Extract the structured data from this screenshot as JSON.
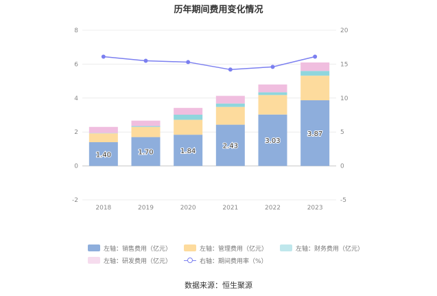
{
  "chart_data": {
    "type": "bar",
    "title": "历年期间费用变化情况",
    "categories": [
      "2018",
      "2019",
      "2020",
      "2021",
      "2022",
      "2023"
    ],
    "series": [
      {
        "name": "左轴：销售费用（亿元）",
        "axis": "left",
        "type": "bar",
        "color": "#8eaedc",
        "values": [
          1.4,
          1.7,
          1.84,
          2.43,
          3.03,
          3.87
        ],
        "labels": [
          "1.40",
          "1.70",
          "1.84",
          "2.43",
          "3.03",
          "3.87"
        ]
      },
      {
        "name": "左轴：管理费用（亿元）",
        "axis": "left",
        "type": "bar",
        "color": "#fddb9d",
        "values": [
          0.52,
          0.6,
          0.88,
          1.05,
          1.15,
          1.45
        ]
      },
      {
        "name": "左轴：财务费用（亿元）",
        "axis": "left",
        "type": "bar",
        "color": "#8fd6dd",
        "values": [
          0.02,
          0.05,
          0.3,
          0.2,
          0.16,
          0.28
        ]
      },
      {
        "name": "左轴：研发费用（亿元）",
        "axis": "left",
        "type": "bar",
        "color": "#f0bedf",
        "values": [
          0.36,
          0.32,
          0.4,
          0.45,
          0.46,
          0.5
        ]
      },
      {
        "name": "右轴：期间费用率（%）",
        "axis": "right",
        "type": "line",
        "color": "#7b7ff0",
        "values": [
          16.1,
          15.5,
          15.3,
          14.2,
          14.6,
          16.1
        ]
      }
    ],
    "y_left": {
      "ticks": [
        "8",
        "6",
        "4",
        "2",
        "0",
        "-2"
      ],
      "ylim": [
        -2,
        8
      ]
    },
    "y_right": {
      "ticks": [
        "20",
        "15",
        "10",
        "5",
        "0",
        "-5"
      ],
      "ylim": [
        -5,
        20
      ]
    },
    "grid": true,
    "legend_position": "bottom"
  },
  "source": "数据来源：恒生聚源"
}
